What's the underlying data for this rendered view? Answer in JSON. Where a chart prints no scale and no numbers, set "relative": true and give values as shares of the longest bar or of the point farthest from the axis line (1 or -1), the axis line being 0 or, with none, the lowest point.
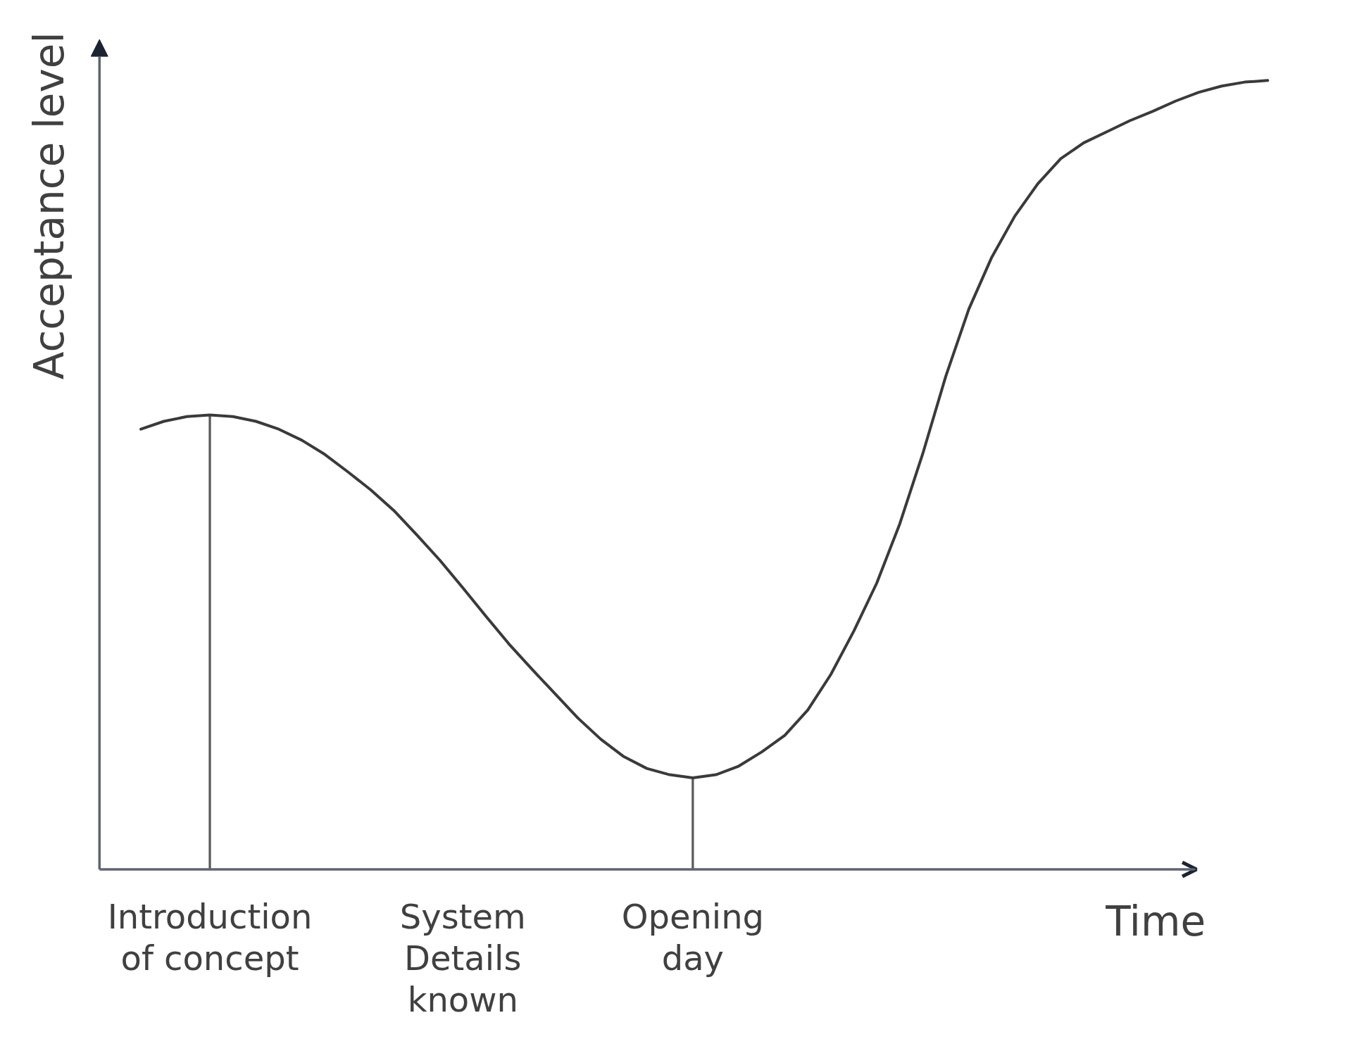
{
  "chart_data": {
    "type": "line",
    "xlabel": "Time",
    "ylabel": "Acceptance level",
    "relative": true,
    "categories": [
      null,
      null,
      null,
      "Introduction of concept",
      null,
      null,
      null,
      null,
      null,
      null,
      null,
      null,
      null,
      null,
      "System Details known",
      null,
      null,
      null,
      null,
      null,
      null,
      null,
      null,
      null,
      "Opening day",
      null,
      null,
      null,
      null,
      null,
      null,
      null,
      null,
      null,
      null,
      null,
      null,
      null,
      null,
      null,
      null,
      null,
      null,
      null,
      null,
      null,
      null,
      null,
      null,
      null
    ],
    "series": [
      {
        "type": "bar",
        "color": "#5a5a5a",
        "values": [
          null,
          null,
          null,
          0.576,
          null,
          null,
          null,
          null,
          null,
          null,
          null,
          null,
          null,
          null,
          null,
          null,
          null,
          null,
          null,
          null,
          null,
          null,
          null,
          null,
          0.116,
          null,
          null,
          null,
          null,
          null,
          null,
          null,
          null,
          null,
          null,
          null,
          null,
          null,
          null,
          null,
          null,
          null,
          null,
          null,
          null,
          null,
          null,
          null,
          null,
          null
        ]
      },
      {
        "color": "#3a3a3a",
        "values": [
          0.558,
          0.568,
          0.574,
          0.576,
          0.574,
          0.568,
          0.558,
          0.544,
          0.526,
          0.504,
          0.481,
          0.455,
          0.424,
          0.392,
          0.357,
          0.321,
          0.286,
          0.254,
          0.223,
          0.192,
          0.165,
          0.143,
          0.128,
          0.12,
          0.116,
          0.12,
          0.131,
          0.149,
          0.17,
          0.202,
          0.247,
          0.302,
          0.363,
          0.438,
          0.527,
          0.625,
          0.71,
          0.776,
          0.828,
          0.869,
          0.901,
          0.921,
          0.935,
          0.949,
          0.961,
          0.974,
          0.985,
          0.993,
          0.998,
          1.0
        ]
      }
    ]
  }
}
